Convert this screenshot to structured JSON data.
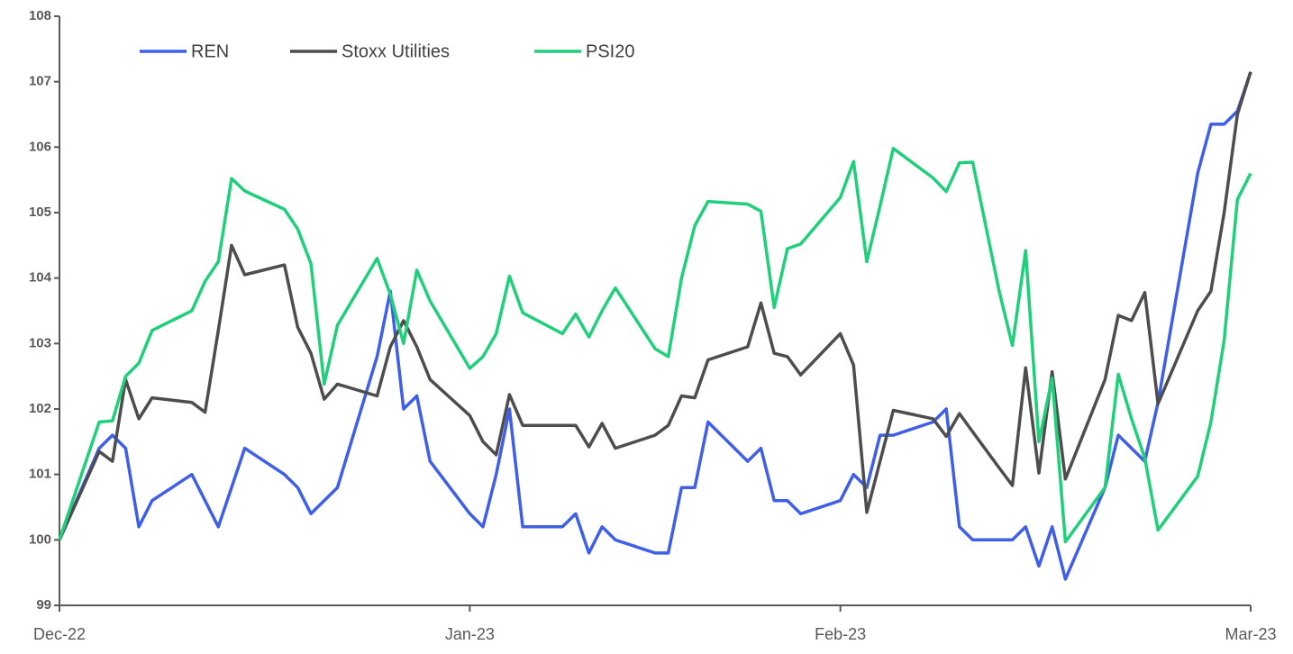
{
  "chart_data": {
    "type": "line",
    "x": [
      0,
      3,
      4,
      5,
      6,
      7,
      10,
      11,
      12,
      13,
      14,
      17,
      18,
      19,
      20,
      21,
      24,
      25,
      26,
      27,
      28,
      31,
      32,
      33,
      34,
      35,
      38,
      39,
      40,
      41,
      42,
      45,
      46,
      47,
      48,
      49,
      52,
      53,
      54,
      55,
      56,
      59,
      60,
      61,
      62,
      63,
      66,
      67,
      68,
      69,
      71,
      72,
      73,
      74,
      75,
      76,
      79,
      80,
      81,
      82,
      83,
      86,
      87,
      88,
      89,
      90
    ],
    "xlim": [
      0,
      90
    ],
    "xticks": [
      {
        "value": 0,
        "label": "Dec-22"
      },
      {
        "value": 31,
        "label": "Jan-23"
      },
      {
        "value": 59,
        "label": "Feb-23"
      },
      {
        "value": 90,
        "label": "Mar-23"
      }
    ],
    "ylim": [
      99,
      108
    ],
    "yticks": [
      99,
      100,
      101,
      102,
      103,
      104,
      105,
      106,
      107,
      108
    ],
    "legend": "top",
    "series": [
      {
        "name": "REN",
        "color": "#3f5fe6",
        "values": [
          100,
          101.4,
          101.6,
          101.4,
          100.2,
          100.6,
          101.0,
          100.6,
          100.2,
          100.8,
          101.4,
          101.0,
          100.8,
          100.4,
          100.6,
          100.8,
          102.8,
          103.8,
          102.0,
          102.2,
          101.2,
          100.4,
          100.2,
          101.0,
          102.0,
          100.2,
          100.2,
          100.4,
          99.8,
          100.2,
          100.0,
          99.8,
          99.8,
          100.8,
          100.8,
          101.8,
          101.2,
          101.4,
          100.6,
          100.6,
          100.4,
          100.6,
          101.0,
          100.8,
          101.6,
          101.6,
          101.8,
          102.0,
          100.2,
          100.0,
          100.0,
          100.0,
          100.2,
          99.6,
          100.2,
          99.4,
          100.8,
          101.6,
          101.4,
          101.2,
          102.1,
          105.6,
          106.35,
          106.35,
          106.55,
          107.15
        ]
      },
      {
        "name": "Stoxx Utilities",
        "color": "#4d4d4d",
        "values": [
          100,
          101.35,
          101.2,
          102.45,
          101.85,
          102.17,
          102.1,
          101.95,
          103.2,
          104.5,
          104.05,
          104.2,
          103.25,
          102.85,
          102.15,
          102.38,
          102.2,
          102.95,
          103.35,
          102.95,
          102.45,
          101.9,
          101.5,
          101.3,
          102.22,
          101.75,
          101.75,
          101.75,
          101.42,
          101.78,
          101.4,
          101.6,
          101.75,
          102.2,
          102.17,
          102.75,
          102.95,
          103.62,
          102.85,
          102.8,
          102.52,
          103.15,
          102.67,
          100.42,
          101.2,
          101.98,
          101.85,
          101.58,
          101.93,
          101.65,
          101.1,
          100.83,
          102.63,
          101.02,
          102.57,
          100.93,
          102.45,
          103.43,
          103.35,
          103.78,
          102.08,
          103.5,
          103.8,
          105.0,
          106.5,
          107.15
        ]
      },
      {
        "name": "PSI20",
        "color": "#1fcf7a",
        "values": [
          100,
          101.8,
          101.82,
          102.5,
          102.7,
          103.2,
          103.5,
          103.95,
          104.25,
          105.52,
          105.33,
          105.05,
          104.75,
          104.22,
          102.38,
          103.28,
          104.3,
          103.75,
          103.0,
          104.12,
          103.65,
          102.62,
          102.8,
          103.15,
          104.03,
          103.47,
          103.15,
          103.45,
          103.1,
          103.5,
          103.85,
          102.92,
          102.8,
          104.0,
          104.8,
          105.17,
          105.13,
          105.02,
          103.55,
          104.45,
          104.52,
          105.23,
          105.78,
          104.25,
          105.1,
          105.98,
          105.53,
          105.32,
          105.76,
          105.77,
          103.8,
          102.97,
          104.42,
          101.5,
          102.47,
          99.97,
          100.8,
          102.53,
          101.85,
          101.25,
          100.15,
          100.97,
          101.8,
          103.05,
          105.2,
          105.6
        ]
      }
    ]
  }
}
